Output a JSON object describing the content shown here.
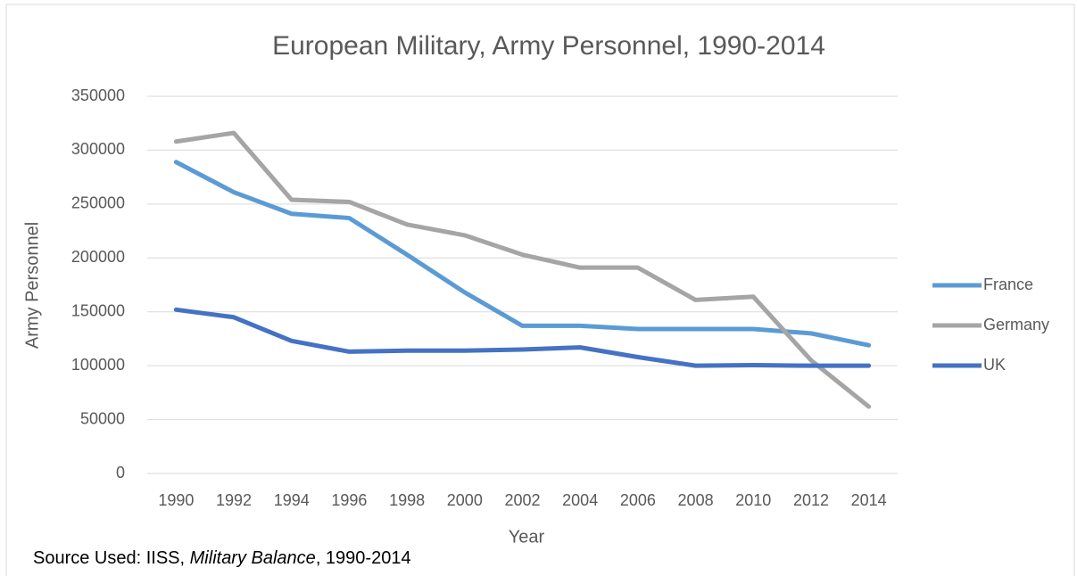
{
  "chart_data": {
    "type": "line",
    "title": "European Military, Army Personnel, 1990-2014",
    "x_label": "Year",
    "y_label": "Army Personnel",
    "source": [
      "Source Used: IISS, ",
      "Military Balance",
      ", 1990-2014"
    ],
    "categories": [
      "1990",
      "1992",
      "1994",
      "1996",
      "1998",
      "2000",
      "2002",
      "2004",
      "2006",
      "2008",
      "2010",
      "2012",
      "2014"
    ],
    "series": [
      {
        "name": "France",
        "color": "#5b9bd5",
        "values": [
          289000,
          261000,
          241000,
          237000,
          203000,
          168000,
          137000,
          137000,
          134000,
          134000,
          134000,
          130000,
          119000
        ]
      },
      {
        "name": "Germany",
        "color": "#a5a5a5",
        "values": [
          308000,
          316000,
          254000,
          252000,
          231000,
          221000,
          203000,
          191000,
          191000,
          161000,
          164000,
          105000,
          62000
        ]
      },
      {
        "name": "UK",
        "color": "#4472c4",
        "values": [
          152000,
          145000,
          123000,
          113000,
          114000,
          114000,
          115000,
          117000,
          108000,
          100000,
          100500,
          100000,
          100000
        ]
      }
    ],
    "ylim": [
      0,
      350000
    ],
    "yticks": [
      0,
      50000,
      100000,
      150000,
      200000,
      250000,
      300000,
      350000
    ],
    "grid": true,
    "legend": "right"
  }
}
